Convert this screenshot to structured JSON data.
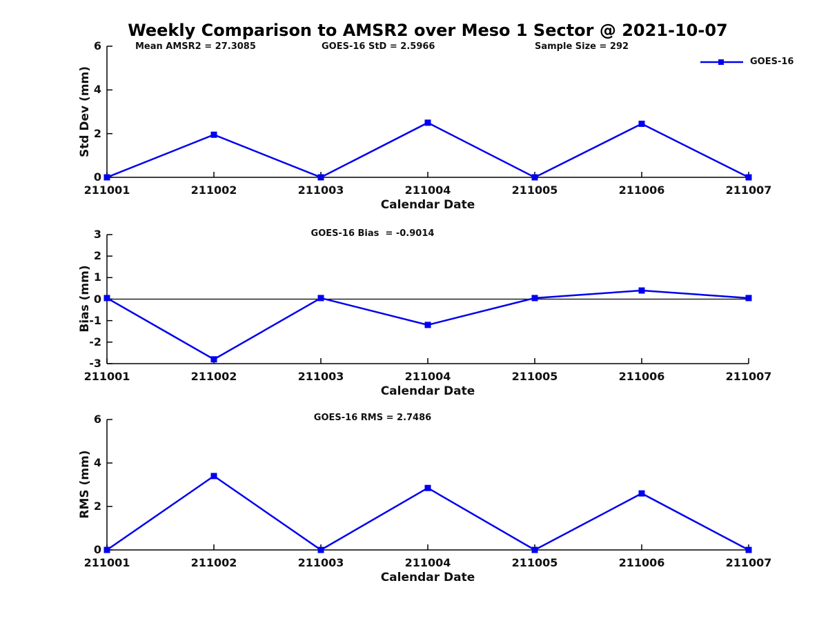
{
  "title": "Weekly Comparison to AMSR2 over Meso 1 Sector @ 2021-10-07",
  "header_annotations": {
    "mean_amsr2": "Mean AMSR2 = 27.3085",
    "goes16_std": "GOES-16 StD = 2.5966",
    "sample_size": "Sample Size = 292"
  },
  "legend": {
    "label": "GOES-16",
    "color": "#0000ee",
    "position": "upper right outside"
  },
  "colors": {
    "line": "#0000ee",
    "marker": "#0000ee",
    "axis": "#000000",
    "text": "#111111"
  },
  "chart_data": [
    {
      "type": "line",
      "categories": [
        "211001",
        "211002",
        "211003",
        "211004",
        "211005",
        "211006",
        "211007"
      ],
      "series": [
        {
          "name": "GOES-16",
          "values": [
            0,
            1.95,
            0,
            2.5,
            0,
            2.45,
            0
          ]
        }
      ],
      "title": "",
      "annotation": "",
      "xlabel": "Calendar Date",
      "ylabel": "Std Dev (mm)",
      "ylim": [
        0,
        6
      ],
      "yticks": [
        0,
        2,
        4,
        6
      ],
      "grid": false,
      "marker": "square",
      "zero_line": false
    },
    {
      "type": "line",
      "categories": [
        "211001",
        "211002",
        "211003",
        "211004",
        "211005",
        "211006",
        "211007"
      ],
      "series": [
        {
          "name": "GOES-16",
          "values": [
            0.05,
            -2.8,
            0.05,
            -1.2,
            0.05,
            0.4,
            0.05
          ]
        }
      ],
      "title": "",
      "annotation": "GOES-16 Bias  = -0.9014",
      "xlabel": "Calendar Date",
      "ylabel": "Bias (mm)",
      "ylim": [
        -3,
        3
      ],
      "yticks": [
        -3,
        -2,
        -1,
        0,
        1,
        2,
        3
      ],
      "grid": false,
      "marker": "square",
      "zero_line": true
    },
    {
      "type": "line",
      "categories": [
        "211001",
        "211002",
        "211003",
        "211004",
        "211005",
        "211006",
        "211007"
      ],
      "series": [
        {
          "name": "GOES-16",
          "values": [
            0,
            3.4,
            0,
            2.85,
            0,
            2.6,
            0
          ]
        }
      ],
      "title": "",
      "annotation": "GOES-16 RMS = 2.7486",
      "xlabel": "Calendar Date",
      "ylabel": "RMS (mm)",
      "ylim": [
        0,
        6
      ],
      "yticks": [
        0,
        2,
        4,
        6
      ],
      "grid": false,
      "marker": "square",
      "zero_line": false
    }
  ]
}
